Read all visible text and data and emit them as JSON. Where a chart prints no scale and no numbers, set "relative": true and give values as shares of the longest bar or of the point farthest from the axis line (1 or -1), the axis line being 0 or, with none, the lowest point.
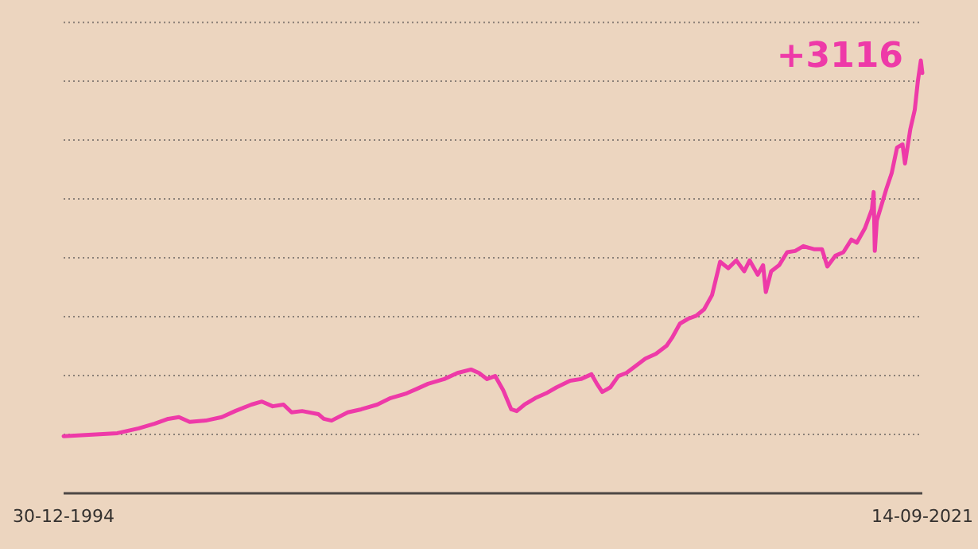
{
  "chart_data": {
    "type": "line",
    "relative": true,
    "grid": true,
    "marker": "none",
    "line_style": "solid",
    "xlim": [
      "1994-12-30",
      "2021-09-14"
    ],
    "xticks": [
      {
        "value": "1994-12-30",
        "label": "30-12-1994"
      },
      {
        "value": "2021-09-14",
        "label": "14-09-2021"
      }
    ],
    "annotations": [
      {
        "text": "+3116",
        "x": "2021-09-14",
        "y": 0.971
      }
    ],
    "series": [
      {
        "color": "#ee3aa8",
        "x": [
          "1994-12-30",
          "1996-01",
          "1996-09",
          "1997-05",
          "1997-11",
          "1998-04",
          "1998-08",
          "1998-12",
          "1999-06",
          "1999-12",
          "2000-05",
          "2000-11",
          "2001-03",
          "2001-07",
          "2001-11",
          "2002-02",
          "2002-06",
          "2002-12",
          "2003-02",
          "2003-05",
          "2003-11",
          "2004-04",
          "2004-10",
          "2005-03",
          "2005-09",
          "2006-01",
          "2006-05",
          "2006-11",
          "2007-04",
          "2007-09",
          "2007-12",
          "2008-03",
          "2008-06",
          "2008-09",
          "2008-12",
          "2009-02",
          "2009-05",
          "2009-09",
          "2010-01",
          "2010-05",
          "2010-10",
          "2011-02",
          "2011-06",
          "2011-08",
          "2011-10",
          "2012-01",
          "2012-04",
          "2012-07",
          "2012-11",
          "2013-02",
          "2013-06",
          "2013-10",
          "2013-12",
          "2014-03",
          "2014-06",
          "2014-09",
          "2014-12",
          "2015-03",
          "2015-06",
          "2015-09",
          "2015-12",
          "2016-03",
          "2016-05",
          "2016-08",
          "2016-10",
          "2016-11",
          "2017-01",
          "2017-04",
          "2017-07",
          "2017-10",
          "2018-01",
          "2018-05",
          "2018-08",
          "2018-10",
          "2019-01",
          "2019-04",
          "2019-07",
          "2019-09",
          "2019-12",
          "2020-02-19",
          "2020-03-10",
          "2020-03-23",
          "2020-04-15",
          "2020-08",
          "2020-10",
          "2020-12",
          "2021-02",
          "2021-03",
          "2021-05",
          "2021-06-20",
          "2021-07-25",
          "2021-08-28",
          "2021-09-14"
        ],
        "values": [
          0.132,
          0.136,
          0.139,
          0.15,
          0.161,
          0.172,
          0.176,
          0.165,
          0.168,
          0.176,
          0.19,
          0.205,
          0.212,
          0.201,
          0.205,
          0.187,
          0.19,
          0.183,
          0.172,
          0.168,
          0.187,
          0.194,
          0.205,
          0.22,
          0.231,
          0.242,
          0.253,
          0.264,
          0.278,
          0.286,
          0.278,
          0.264,
          0.271,
          0.238,
          0.194,
          0.19,
          0.205,
          0.22,
          0.231,
          0.245,
          0.26,
          0.264,
          0.275,
          0.253,
          0.234,
          0.245,
          0.271,
          0.278,
          0.297,
          0.311,
          0.322,
          0.341,
          0.359,
          0.392,
          0.403,
          0.41,
          0.425,
          0.458,
          0.535,
          0.52,
          0.538,
          0.513,
          0.538,
          0.505,
          0.527,
          0.465,
          0.513,
          0.527,
          0.557,
          0.56,
          0.571,
          0.564,
          0.564,
          0.524,
          0.549,
          0.557,
          0.586,
          0.579,
          0.612,
          0.656,
          0.696,
          0.56,
          0.63,
          0.703,
          0.74,
          0.799,
          0.806,
          0.762,
          0.842,
          0.886,
          0.952,
          1,
          0.971
        ]
      }
    ]
  }
}
